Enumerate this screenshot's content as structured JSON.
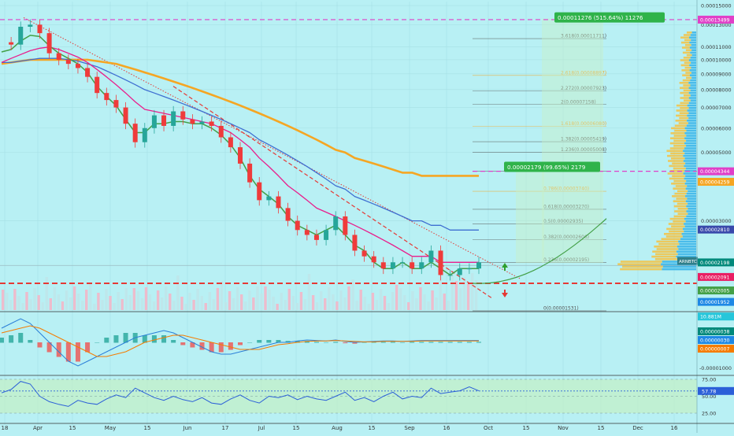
{
  "chart_data": {
    "type": "line",
    "title": "",
    "symbol": "ARNBTC",
    "x_tick_labels": [
      "18",
      "Apr",
      "15",
      "May",
      "15",
      "Jun",
      "17",
      "Jul",
      "15",
      "Aug",
      "15",
      "Sep",
      "16",
      "Oct",
      "15",
      "Nov",
      "15",
      "Dec",
      "16"
    ],
    "price_axis": {
      "ylim": [
        1.53e-05,
        0.0001545
      ],
      "tick_values": [
        0.00015,
        0.00013,
        0.00011,
        0.0001,
        9e-05,
        8e-05,
        7e-05,
        6e-05,
        5e-05,
        3e-05,
        1e-05
      ],
      "tick_labels": [
        "0.00015000",
        "0.00013000",
        "0.00011000",
        "0.00010000",
        "0.00009000",
        "0.00008000",
        "0.00007000",
        "0.00006000",
        "0.00005000",
        "0.00003000",
        "0.00001000"
      ]
    },
    "price_badges": [
      {
        "label": "0.00013499",
        "value": 0.00013499,
        "color": "#e040c8"
      },
      {
        "label": "0.00004344",
        "value": 4.344e-05,
        "color": "#e040c8"
      },
      {
        "label": "0.00004259",
        "value": 4.259e-05,
        "color": "#f5a623"
      },
      {
        "label": "0.00002810",
        "value": 2.81e-05,
        "color": "#3949ab"
      },
      {
        "label": "0.00002198",
        "value": 2.198e-05,
        "color": "#00897b"
      },
      {
        "label": "0.00002091",
        "value": 2.091e-05,
        "color": "#e91e63"
      },
      {
        "label": "0.00002005",
        "value": 2.005e-05,
        "color": "#43a047"
      },
      {
        "label": "0.00001952",
        "value": 1.952e-05,
        "color": "#1e88e5"
      },
      {
        "label": "10.881M",
        "value": 1.75e-05,
        "color": "#26c6da"
      }
    ],
    "fib_levels": [
      {
        "label": "3.618(0.00011711)",
        "value": 0.00011711,
        "color": "#555555"
      },
      {
        "label": "2.618(0.00008897)",
        "value": 8.897e-05,
        "color": "#f5a623"
      },
      {
        "label": "2.272(0.00007923)",
        "value": 7.923e-05,
        "color": "#555555"
      },
      {
        "label": "2(0.00007158)",
        "value": 7.158e-05,
        "color": "#555555"
      },
      {
        "label": "1.618(0.00006080)",
        "value": 6.08e-05,
        "color": "#f5a623"
      },
      {
        "label": "1.382(0.00005419)",
        "value": 5.419e-05,
        "color": "#555555"
      },
      {
        "label": "1.236(0.00005008)",
        "value": 5.008e-05,
        "color": "#555555"
      },
      {
        "label": "1(0.00004344)",
        "value": 4.344e-05,
        "color": "#555555"
      },
      {
        "label": "0.786(0.00003740)",
        "value": 3.74e-05,
        "color": "#f5a623"
      },
      {
        "label": "0.618(0.00003270)",
        "value": 3.27e-05,
        "color": "#555555"
      },
      {
        "label": "0.5(0.00002935)",
        "value": 2.935e-05,
        "color": "#555555"
      },
      {
        "label": "0.382(0.00002606)",
        "value": 2.606e-05,
        "color": "#555555"
      },
      {
        "label": "0.236(0.00002195)",
        "value": 2.195e-05,
        "color": "#555555"
      },
      {
        "label": "0(0.00001531)",
        "value": 1.531e-05,
        "color": "#555555"
      }
    ],
    "target_labels": [
      {
        "label": "0.00011276 (515.64%) 11276",
        "value": 0.000136
      },
      {
        "label": "0.00002179 (99.65%) 2179",
        "value": 4.45e-05
      }
    ],
    "close_series": [
      0.000114,
      0.000112,
      0.000128,
      0.00013,
      0.000122,
      0.000105,
      0.0001,
      9.7e-05,
      9.4e-05,
      8.8e-05,
      7.8e-05,
      7.4e-05,
      7e-05,
      6.2e-05,
      5.4e-05,
      6e-05,
      6.6e-05,
      6.1e-05,
      6.8e-05,
      6.4e-05,
      6.2e-05,
      6.3e-05,
      6.1e-05,
      5.6e-05,
      5.2e-05,
      4.6e-05,
      4e-05,
      3.5e-05,
      3.6e-05,
      3.3e-05,
      3e-05,
      2.8e-05,
      2.7e-05,
      2.6e-05,
      2.8e-05,
      3.1e-05,
      2.7e-05,
      2.4e-05,
      2.3e-05,
      2.2e-05,
      2.1e-05,
      2.2e-05,
      2.2e-05,
      2.1e-05,
      2.2e-05,
      2.4e-05,
      2e-05,
      2e-05,
      2.1e-05,
      2.1e-05,
      2.2e-05
    ],
    "ema_green": [
      0.000106,
      0.000108,
      0.000115,
      0.00012,
      0.000119,
      0.000111,
      0.000105,
      0.000101,
      9.7e-05,
      9.1e-05,
      8.2e-05,
      7.6e-05,
      7.1e-05,
      6.4e-05,
      5.8e-05,
      5.8e-05,
      6.2e-05,
      6.2e-05,
      6.3e-05,
      6.3e-05,
      6.2e-05,
      6.2e-05,
      6e-05,
      5.7e-05,
      5.3e-05,
      4.8e-05,
      4.2e-05,
      3.8e-05,
      3.6e-05,
      3.4e-05,
      3.1e-05,
      2.9e-05,
      2.8e-05,
      2.7e-05,
      2.8e-05,
      2.9e-05,
      2.7e-05,
      2.5e-05,
      2.4e-05,
      2.2e-05,
      2.1e-05,
      2.1e-05,
      2.2e-05,
      2.1e-05,
      2.1e-05,
      2.2e-05,
      2.1e-05,
      2e-05,
      2.1e-05,
      2.1e-05,
      2.1e-05
    ],
    "ma_magenta": [
      9.8e-05,
      0.000101,
      0.000104,
      0.000107,
      0.000109,
      0.00011,
      0.000108,
      0.000105,
      0.000102,
      9.8e-05,
      9.3e-05,
      8.8e-05,
      8.3e-05,
      7.8e-05,
      7.3e-05,
      6.9e-05,
      6.8e-05,
      6.7e-05,
      6.6e-05,
      6.5e-05,
      6.4e-05,
      6.3e-05,
      6.2e-05,
      6e-05,
      5.8e-05,
      5.5e-05,
      5.2e-05,
      4.8e-05,
      4.5e-05,
      4.2e-05,
      3.9e-05,
      3.7e-05,
      3.5e-05,
      3.3e-05,
      3.2e-05,
      3.1e-05,
      3e-05,
      2.9e-05,
      2.8e-05,
      2.7e-05,
      2.6e-05,
      2.5e-05,
      2.4e-05,
      2.3e-05,
      2.3e-05,
      2.3e-05,
      2.2e-05,
      2.2e-05,
      2.2e-05,
      2.2e-05,
      2.2e-05
    ],
    "ma_blue": [
      9.8e-05,
      9.8e-05,
      9.9e-05,
      0.0001,
      0.000101,
      0.000101,
      0.000101,
      0.0001,
      9.9e-05,
      9.7e-05,
      9.5e-05,
      9.2e-05,
      8.9e-05,
      8.6e-05,
      8.3e-05,
      8e-05,
      7.8e-05,
      7.6e-05,
      7.4e-05,
      7.2e-05,
      7e-05,
      6.8e-05,
      6.6e-05,
      6.4e-05,
      6.2e-05,
      6e-05,
      5.8e-05,
      5.5e-05,
      5.3e-05,
      5.1e-05,
      4.9e-05,
      4.7e-05,
      4.5e-05,
      4.3e-05,
      4.1e-05,
      3.9e-05,
      3.8e-05,
      3.6e-05,
      3.5e-05,
      3.4e-05,
      3.3e-05,
      3.2e-05,
      3.1e-05,
      3e-05,
      3e-05,
      2.9e-05,
      2.9e-05,
      2.8e-05,
      2.8e-05,
      2.8e-05,
      2.8e-05
    ],
    "ma_orange": [
      9.7e-05,
      9.8e-05,
      9.9e-05,
      0.0001,
      0.0001,
      0.0001,
      0.0001,
      0.0001,
      0.0001,
      0.0001,
      9.9e-05,
      9.8e-05,
      9.7e-05,
      9.5e-05,
      9.3e-05,
      9.1e-05,
      8.9e-05,
      8.7e-05,
      8.5e-05,
      8.3e-05,
      8.1e-05,
      7.9e-05,
      7.7e-05,
      7.5e-05,
      7.3e-05,
      7.1e-05,
      6.9e-05,
      6.7e-05,
      6.5e-05,
      6.3e-05,
      6.1e-05,
      5.9e-05,
      5.7e-05,
      5.5e-05,
      5.3e-05,
      5.1e-05,
      5e-05,
      4.8e-05,
      4.7e-05,
      4.6e-05,
      4.5e-05,
      4.4e-05,
      4.3e-05,
      4.3e-05,
      4.2e-05,
      4.2e-05,
      4.2e-05,
      4.2e-05,
      4.2e-05,
      4.2e-05,
      4.2e-05
    ],
    "macd": {
      "axis_labels": [
        "0.00001000",
        "-0.00001000"
      ],
      "badges": [
        {
          "label": "0.00000038",
          "color": "#00897b"
        },
        {
          "label": "0.00000030",
          "color": "#1e88e5"
        },
        {
          "label": "0.00000007",
          "color": "#f57c00"
        }
      ],
      "macd_line": [
        3,
        4,
        5,
        4,
        2,
        0,
        -2,
        -4,
        -5,
        -4,
        -3,
        -2,
        -1,
        0,
        1,
        1.5,
        2,
        2.5,
        2,
        1,
        0,
        -1,
        -2,
        -2.5,
        -2.5,
        -2,
        -1.5,
        -1,
        -0.5,
        0,
        0,
        0.3,
        0.5,
        0.4,
        0.3,
        0.5,
        0.2,
        0,
        0.1,
        0.2,
        0.3,
        0.3,
        0.2,
        0.3,
        0.4,
        0.4,
        0.4,
        0.4,
        0.4,
        0.4,
        0.4
      ],
      "signal_line": [
        2,
        2.5,
        3,
        3.5,
        3,
        2,
        1,
        0,
        -1,
        -2,
        -3,
        -3,
        -2.5,
        -2,
        -1,
        0,
        0.5,
        1,
        1.5,
        1.5,
        1,
        0.5,
        0,
        -0.5,
        -1,
        -1.5,
        -1.5,
        -1.5,
        -1,
        -0.5,
        -0.3,
        0,
        0.2,
        0.3,
        0.3,
        0.4,
        0.3,
        0.2,
        0.1,
        0.1,
        0.2,
        0.2,
        0.2,
        0.2,
        0.3,
        0.3,
        0.3,
        0.3,
        0.3,
        0.3,
        0.3
      ]
    },
    "rsi": {
      "axis_labels": [
        "75.00",
        "50.00",
        "25.00"
      ],
      "levels": [
        75,
        50,
        25
      ],
      "value_label": "57.78",
      "values": [
        55,
        60,
        72,
        68,
        50,
        42,
        38,
        35,
        44,
        40,
        38,
        46,
        52,
        48,
        62,
        55,
        48,
        44,
        50,
        45,
        42,
        48,
        40,
        38,
        46,
        52,
        44,
        40,
        50,
        48,
        52,
        45,
        50,
        46,
        44,
        50,
        56,
        44,
        48,
        42,
        50,
        56,
        46,
        50,
        48,
        62,
        54,
        56,
        58,
        64,
        58
      ]
    }
  }
}
